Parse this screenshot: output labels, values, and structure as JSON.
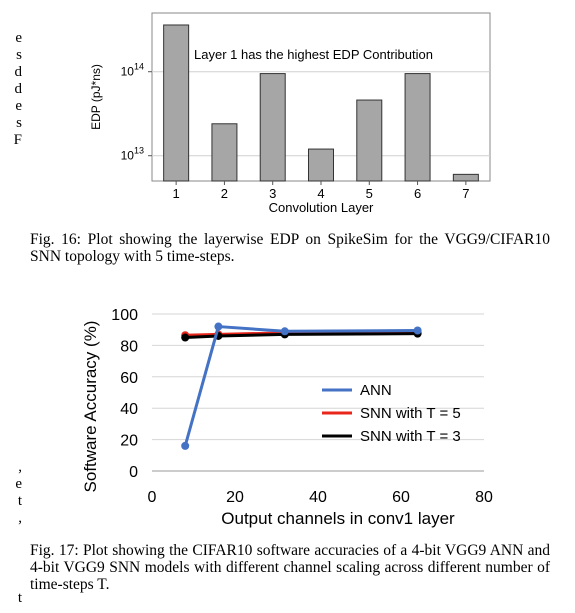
{
  "margin_left_fragments": [
    "e",
    "s",
    "d",
    "d",
    "e",
    "s",
    "F",
    "",
    ",",
    "e",
    "t",
    ",",
    "",
    "t"
  ],
  "figure16": {
    "caption_label": "Fig. 16:",
    "caption_text": "Plot showing the layerwise EDP on SpikeSim for the VGG9/CIFAR10 SNN topology with 5 time-steps.",
    "chart_data": {
      "type": "bar",
      "scale": "log",
      "categories": [
        "1",
        "2",
        "3",
        "4",
        "5",
        "6",
        "7"
      ],
      "values": [
        360000000000000.0,
        24000000000000.0,
        95000000000000.0,
        12000000000000.0,
        46000000000000.0,
        95000000000000.0,
        6000000000000.0
      ],
      "xlabel": "Convolution Layer",
      "ylabel": "EDP (pJ*ns)",
      "ytick_labels": [
        {
          "base": "10",
          "exp": "13",
          "value": 10000000000000.0
        },
        {
          "base": "10",
          "exp": "14",
          "value": 100000000000000.0
        }
      ],
      "ylim": [
        5000000000000.0,
        500000000000000.0
      ],
      "annotation": "Layer 1 has the highest EDP Contribution",
      "grid": true,
      "bar_color": "#a6a6a6"
    }
  },
  "figure17": {
    "caption_label": "Fig. 17:",
    "caption_text": "Plot showing the CIFAR10 software accuracies of a 4-bit VGG9 ANN and 4-bit VGG9 SNN models with different channel scaling across different number of time-steps T.",
    "chart_data": {
      "type": "line",
      "xlabel": "Output channels in conv1 layer",
      "ylabel": "Software Accuracy (%)",
      "xlim": [
        0,
        80
      ],
      "ylim": [
        0,
        100
      ],
      "xticks": [
        0,
        20,
        40,
        60,
        80
      ],
      "yticks": [
        0,
        20,
        40,
        60,
        80,
        100
      ],
      "legend_position": "center-right",
      "series": [
        {
          "name": "ANN",
          "color": "#4472c4",
          "markers": true,
          "x": [
            8,
            16,
            32,
            64
          ],
          "y": [
            16,
            92,
            89,
            89.5
          ]
        },
        {
          "name": "SNN with T = 5",
          "color": "#e8261c",
          "markers": true,
          "x": [
            8,
            16,
            32,
            64
          ],
          "y": [
            86.5,
            87,
            88,
            88.5
          ]
        },
        {
          "name": "SNN with T = 3",
          "color": "#000000",
          "markers": true,
          "x": [
            8,
            16,
            32,
            64
          ],
          "y": [
            85,
            86,
            87,
            87.5
          ]
        }
      ]
    }
  }
}
